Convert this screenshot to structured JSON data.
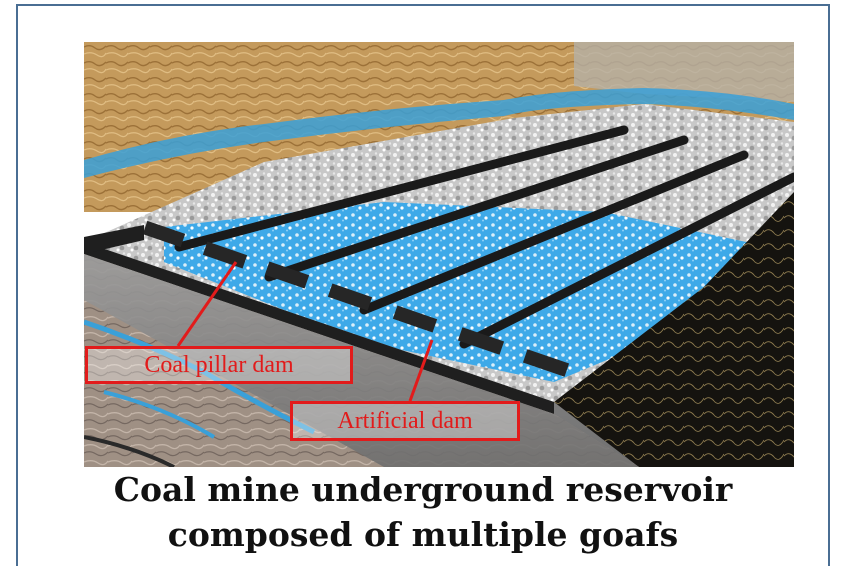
{
  "figure": {
    "labels": {
      "pillar_dam": "Coal pillar dam",
      "artificial_dam": "Artificial dam"
    },
    "colors": {
      "water": "#3aa8e6",
      "rock_top": "#c99a55",
      "dam": "#1b1b1b",
      "callout": "#e21b1b",
      "frame": "#4a6e93"
    }
  },
  "caption": {
    "line1": "Coal mine underground reservoir",
    "line2": "composed of multiple goafs"
  }
}
